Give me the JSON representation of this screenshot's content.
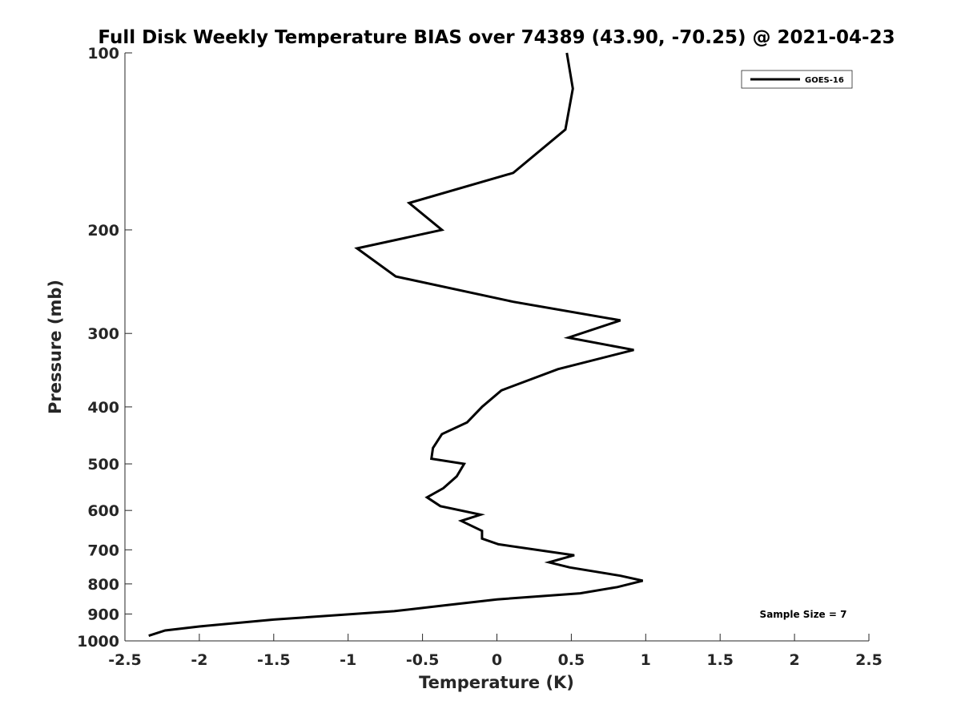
{
  "chart_data": {
    "type": "line",
    "title": "Full Disk Weekly Temperature BIAS over 74389 (43.90, -70.25) @ 2021-04-23",
    "xlabel": "Temperature (K)",
    "ylabel": "Pressure (mb)",
    "xlim": [
      -2.5,
      2.5
    ],
    "ylim": [
      1000,
      100
    ],
    "y_scale": "log",
    "x_ticks": [
      -2.5,
      -2,
      -1.5,
      -1,
      -0.5,
      0,
      0.5,
      1,
      1.5,
      2,
      2.5
    ],
    "x_tick_labels": [
      "-2.5",
      "-2",
      "-1.5",
      "-1",
      "-0.5",
      "0",
      "0.5",
      "1",
      "1.5",
      "2",
      "2.5"
    ],
    "y_ticks": [
      100,
      200,
      300,
      400,
      500,
      600,
      700,
      800,
      900,
      1000
    ],
    "y_tick_labels": [
      "100",
      "200",
      "300",
      "400",
      "500",
      "600",
      "700",
      "800",
      "900",
      "1000"
    ],
    "grid": false,
    "legend": {
      "position": "top-right",
      "entries": [
        "GOES-16"
      ]
    },
    "annotation": "Sample Size = 7",
    "series": [
      {
        "name": "GOES-16",
        "color": "#000000",
        "x": [
          0.47,
          0.51,
          0.46,
          0.11,
          -0.59,
          -0.37,
          -0.94,
          -0.68,
          0.11,
          0.83,
          0.48,
          0.92,
          0.41,
          0.03,
          -0.1,
          -0.2,
          -0.37,
          -0.43,
          -0.44,
          -0.22,
          -0.27,
          -0.36,
          -0.47,
          -0.38,
          -0.11,
          -0.24,
          -0.1,
          -0.1,
          0.01,
          0.52,
          0.35,
          0.49,
          0.83,
          0.98,
          0.81,
          0.56,
          0.0,
          -0.35,
          -0.69,
          -1.5,
          -2.0,
          -2.23,
          -2.34
        ],
        "y": [
          100,
          115,
          135,
          160,
          180,
          200,
          215,
          240,
          265,
          285,
          305,
          320,
          345,
          375,
          400,
          425,
          445,
          470,
          490,
          500,
          525,
          550,
          570,
          590,
          610,
          625,
          650,
          670,
          685,
          715,
          735,
          750,
          775,
          790,
          810,
          830,
          850,
          870,
          890,
          920,
          945,
          960,
          980
        ]
      }
    ]
  }
}
